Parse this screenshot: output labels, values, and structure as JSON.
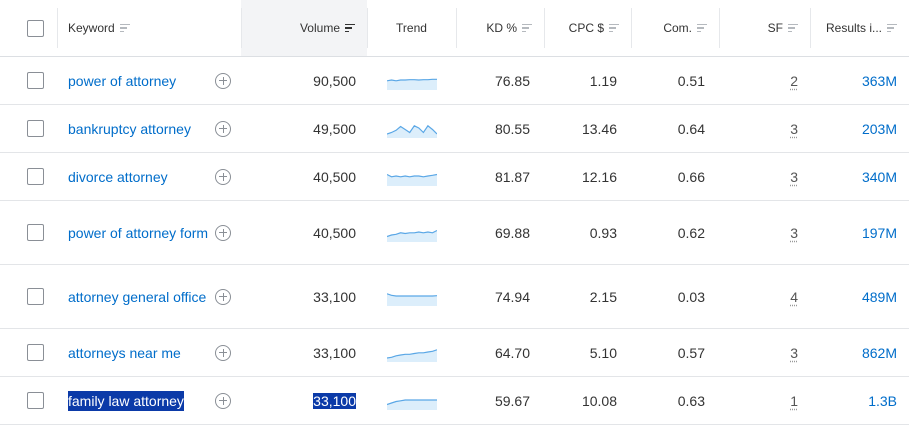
{
  "columns": {
    "keyword": "Keyword",
    "volume": "Volume",
    "trend": "Trend",
    "kd": "KD %",
    "cpc": "CPC $",
    "com": "Com.",
    "sf": "SF",
    "results": "Results i..."
  },
  "colors": {
    "link": "#006dca",
    "trend_line": "#5aa7e6",
    "trend_fill": "#dceefb",
    "selection": "#0b3aa8"
  },
  "rows": [
    {
      "keyword": "power of attorney",
      "volume": "90,500",
      "kd": "76.85",
      "cpc": "1.19",
      "com": "0.51",
      "sf": "2",
      "results": "363M",
      "trend": [
        0.55,
        0.6,
        0.55,
        0.6,
        0.6,
        0.62,
        0.62,
        0.6,
        0.62,
        0.62,
        0.65,
        0.65
      ]
    },
    {
      "keyword": "bankruptcy attorney",
      "volume": "49,500",
      "kd": "80.55",
      "cpc": "13.46",
      "com": "0.64",
      "sf": "3",
      "results": "203M",
      "trend": [
        0.2,
        0.3,
        0.45,
        0.7,
        0.5,
        0.3,
        0.75,
        0.6,
        0.3,
        0.75,
        0.5,
        0.2
      ]
    },
    {
      "keyword": "divorce attorney",
      "volume": "40,500",
      "kd": "81.87",
      "cpc": "12.16",
      "com": "0.66",
      "sf": "3",
      "results": "340M",
      "trend": [
        0.7,
        0.55,
        0.6,
        0.55,
        0.6,
        0.55,
        0.6,
        0.6,
        0.55,
        0.6,
        0.65,
        0.7
      ]
    },
    {
      "keyword": "power of attorney form",
      "volume": "40,500",
      "kd": "69.88",
      "cpc": "0.93",
      "com": "0.62",
      "sf": "3",
      "results": "197M",
      "trend": [
        0.3,
        0.4,
        0.45,
        0.55,
        0.5,
        0.55,
        0.55,
        0.6,
        0.55,
        0.6,
        0.55,
        0.7
      ]
    },
    {
      "keyword": "attorney general office",
      "volume": "33,100",
      "kd": "74.94",
      "cpc": "2.15",
      "com": "0.03",
      "sf": "4",
      "results": "489M",
      "trend": [
        0.75,
        0.65,
        0.6,
        0.6,
        0.6,
        0.6,
        0.6,
        0.6,
        0.6,
        0.6,
        0.6,
        0.62
      ]
    },
    {
      "keyword": "attorneys near me",
      "volume": "33,100",
      "kd": "64.70",
      "cpc": "5.10",
      "com": "0.57",
      "sf": "3",
      "results": "862M",
      "trend": [
        0.2,
        0.25,
        0.35,
        0.4,
        0.45,
        0.45,
        0.5,
        0.55,
        0.55,
        0.6,
        0.65,
        0.75
      ]
    },
    {
      "keyword": "family law attorney",
      "volume": "33,100",
      "kd": "59.67",
      "cpc": "10.08",
      "com": "0.63",
      "sf": "1",
      "results": "1.3B",
      "trend": [
        0.3,
        0.4,
        0.5,
        0.55,
        0.6,
        0.6,
        0.6,
        0.6,
        0.6,
        0.6,
        0.6,
        0.6
      ]
    }
  ],
  "selected_row": 6
}
